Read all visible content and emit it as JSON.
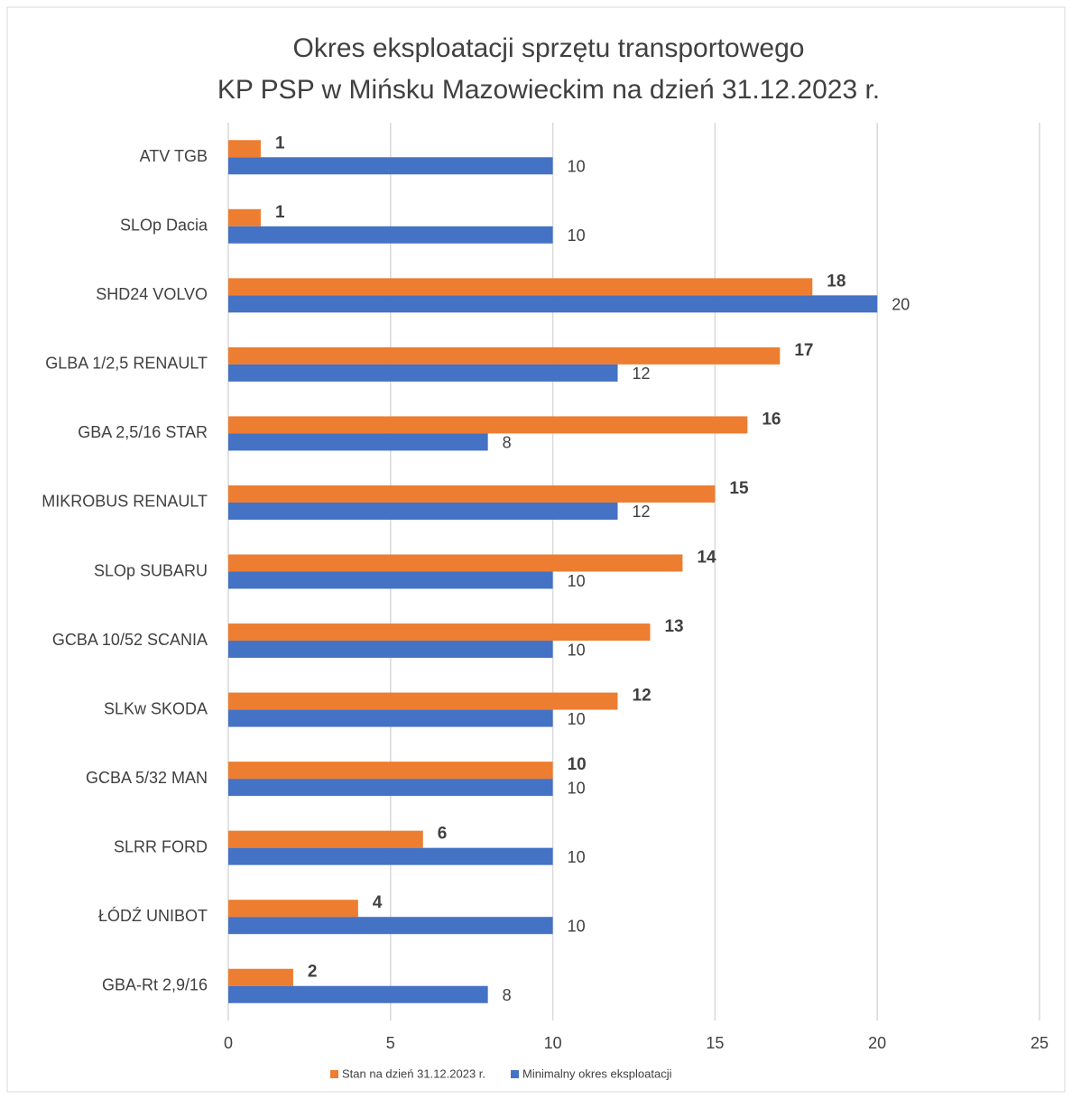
{
  "chart_data": {
    "type": "hbar",
    "title": [
      "Okres eksploatacji sprzętu transportowego",
      "KP PSP w Mińsku Mazowieckim na dzień 31.12.2023 r."
    ],
    "categories": [
      "ATV TGB",
      "SLOp Dacia",
      "SHD24 VOLVO",
      "GLBA 1/2,5 RENAULT",
      "GBA 2,5/16 STAR",
      "MIKROBUS RENAULT",
      "SLOp SUBARU",
      "GCBA 10/52 SCANIA",
      "SLKw SKODA",
      "GCBA 5/32 MAN",
      "SLRR FORD",
      "ŁÓDŹ UNIBOT",
      "GBA-Rt 2,9/16"
    ],
    "series": [
      {
        "name": "Stan na dzień 31.12.2023 r.",
        "color": "#ed7d31",
        "values": [
          1,
          1,
          18,
          17,
          16,
          15,
          14,
          13,
          12,
          10,
          6,
          4,
          2
        ]
      },
      {
        "name": "Minimalny okres eksploatacji",
        "color": "#4472c4",
        "values": [
          10,
          10,
          20,
          12,
          8,
          12,
          10,
          10,
          10,
          10,
          10,
          10,
          8
        ]
      }
    ],
    "xlim": [
      0,
      25
    ],
    "xticks": [
      0,
      5,
      10,
      15,
      20,
      25
    ],
    "grid": true,
    "legend": "bottom"
  }
}
